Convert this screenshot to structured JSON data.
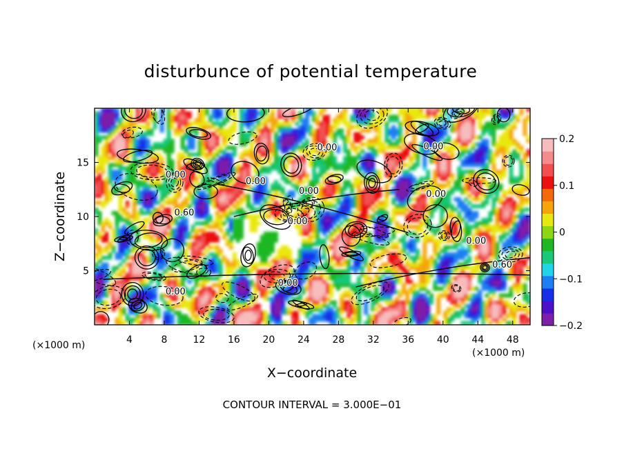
{
  "chart_data": {
    "type": "heatmap",
    "title": "disturbunce of potential temperature",
    "xlabel": "X−coordinate",
    "ylabel": "Z−coordinate",
    "x_unit_left": "(×1000 m)",
    "x_unit_right": "(×1000 m)",
    "footer": "CONTOUR INTERVAL = 3.000E−01",
    "xlim": [
      0,
      50
    ],
    "ylim": [
      0,
      20
    ],
    "x_ticks": [
      4,
      8,
      12,
      16,
      20,
      24,
      28,
      32,
      36,
      40,
      44,
      48
    ],
    "y_ticks": [
      5,
      10,
      15
    ],
    "colorbar": {
      "min": -0.2,
      "max": 0.2,
      "tick_labels": [
        "0.2",
        "0.1",
        "0",
        "−0.1",
        "−0.2"
      ],
      "colors": [
        "#7d1fa8",
        "#4b10c8",
        "#1630e8",
        "#1e7ff0",
        "#22d4e8",
        "#19c879",
        "#1fb824",
        "#8fd514",
        "#e8e810",
        "#f5a50c",
        "#f36a0a",
        "#ec1010",
        "#f25050",
        "#f48c8c",
        "#f7bcbc"
      ]
    },
    "contour_labels": [
      {
        "text": "0.00",
        "x": 18.5,
        "y": 13.0
      },
      {
        "text": "0.00",
        "x": 9.3,
        "y": 13.6
      },
      {
        "text": "0.00",
        "x": 9.3,
        "y": 2.8
      },
      {
        "text": "0.60",
        "x": 10.3,
        "y": 10.1
      },
      {
        "text": "0.00",
        "x": 26.7,
        "y": 16.1
      },
      {
        "text": "0.00",
        "x": 24.6,
        "y": 12.1
      },
      {
        "text": "0.00",
        "x": 23.3,
        "y": 9.3
      },
      {
        "text": "0.00",
        "x": 22.2,
        "y": 3.6
      },
      {
        "text": "0.00",
        "x": 38.9,
        "y": 16.2
      },
      {
        "text": "0.00",
        "x": 39.2,
        "y": 11.8
      },
      {
        "text": "0.00",
        "x": 43.8,
        "y": 7.5
      },
      {
        "text": "0.60",
        "x": 46.8,
        "y": 5.3
      }
    ]
  }
}
